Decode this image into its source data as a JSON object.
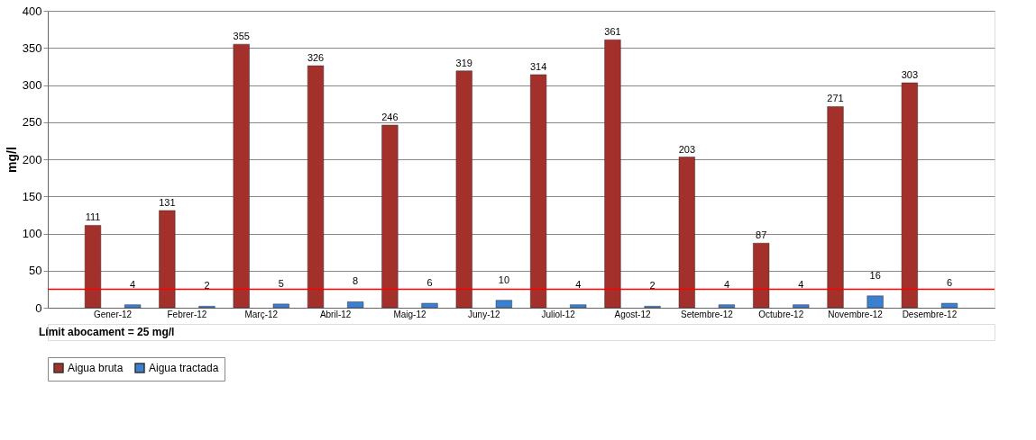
{
  "chart_data": {
    "type": "bar",
    "ylabel": "mg/l",
    "categories": [
      "Gener-12",
      "Febrer-12",
      "Març-12",
      "Abril-12",
      "Maig-12",
      "Juny-12",
      "Juliol-12",
      "Agost-12",
      "Setembre-12",
      "Octubre-12",
      "Novembre-12",
      "Desembre-12"
    ],
    "series": [
      {
        "name": "Aigua bruta",
        "color": "#a3302b",
        "values": [
          111,
          131,
          355,
          326,
          246,
          319,
          314,
          361,
          203,
          87,
          271,
          303
        ]
      },
      {
        "name": "Aigua tractada",
        "color": "#3b7fd0",
        "values": [
          4,
          2,
          5,
          8,
          6,
          10,
          4,
          2,
          4,
          4,
          16,
          6
        ]
      }
    ],
    "ylim": [
      0,
      400
    ],
    "yticks": [
      0,
      50,
      100,
      150,
      200,
      250,
      300,
      350,
      400
    ],
    "grid": "y",
    "data_labels": true,
    "legend": "bottom",
    "ref_lines": [
      {
        "axis": "y",
        "value": 25,
        "color": "#ff0000"
      }
    ],
    "annotations": [
      "Límit abocament = 25 mg/l"
    ]
  }
}
